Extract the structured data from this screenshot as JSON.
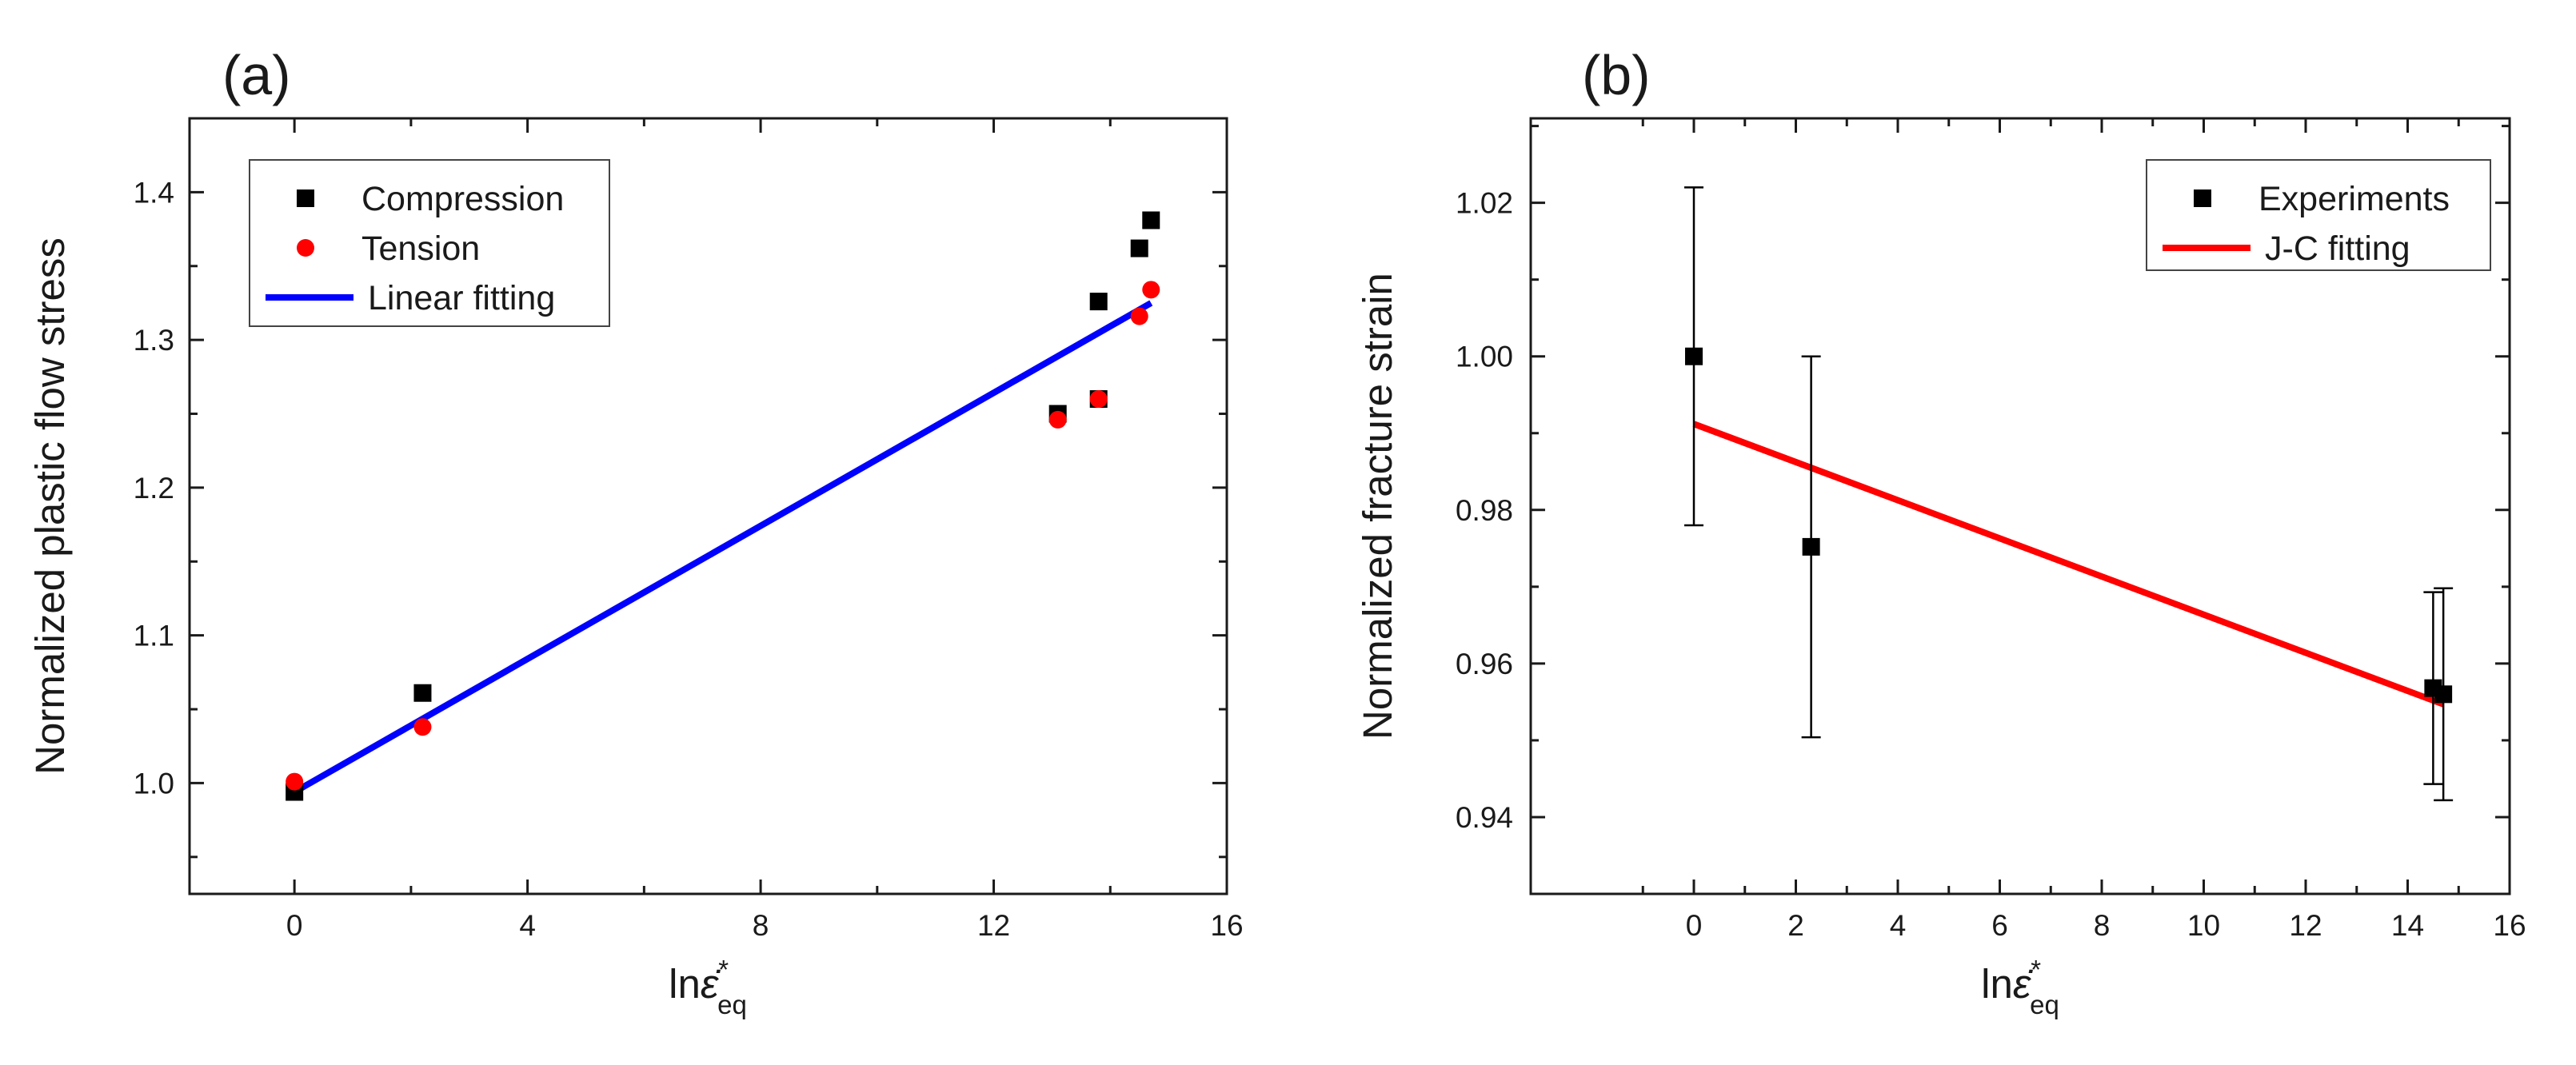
{
  "colors": {
    "compression": "#000000",
    "tension": "#ff0000",
    "linear_fit": "#0000ff",
    "experiments": "#000000",
    "jc_fit": "#ff0000",
    "axis": "#1a1a1a"
  },
  "chart_data": [
    {
      "panel_label": "(a)",
      "type": "scatter",
      "title": "",
      "xlabel": {
        "base": "ln",
        "symbol": "ε̇",
        "superscript": "*",
        "subscript": "eq"
      },
      "ylabel": "Normalized plastic flow stress",
      "xlim": [
        -1.8,
        16
      ],
      "ylim": [
        0.925,
        1.45
      ],
      "xticks": [
        0,
        4,
        8,
        12,
        16
      ],
      "xtick_labels": [
        "0",
        "4",
        "8",
        "12",
        "16"
      ],
      "yticks": [
        1.0,
        1.1,
        1.2,
        1.3,
        1.4
      ],
      "ytick_labels": [
        "1.0",
        "1.1",
        "1.2",
        "1.3",
        "1.4"
      ],
      "grid": false,
      "legend_position": "top-left",
      "series": [
        {
          "name": "Compression",
          "kind": "scatter",
          "marker": "square",
          "color": "#000000",
          "x": [
            0,
            2.2,
            13.1,
            13.8,
            13.8,
            14.5,
            14.7
          ],
          "y": [
            0.994,
            1.061,
            1.25,
            1.326,
            1.26,
            1.362,
            1.381
          ]
        },
        {
          "name": "Tension",
          "kind": "scatter",
          "marker": "circle",
          "color": "#ff0000",
          "x": [
            0,
            2.2,
            13.1,
            13.8,
            14.5,
            14.7
          ],
          "y": [
            1.001,
            1.038,
            1.246,
            1.26,
            1.316,
            1.334
          ]
        },
        {
          "name": "Linear fitting",
          "kind": "line",
          "color": "#0000ff",
          "x": [
            0,
            14.7
          ],
          "y": [
            0.994,
            1.325
          ]
        }
      ]
    },
    {
      "panel_label": "(b)",
      "type": "scatter",
      "title": "",
      "xlabel": {
        "base": "ln",
        "symbol": "ε̇",
        "superscript": "*",
        "subscript": "eq"
      },
      "ylabel": "Normalized fracture strain",
      "xlim": [
        -3.2,
        16
      ],
      "ylim": [
        0.93,
        1.031
      ],
      "xticks": [
        0,
        2,
        4,
        6,
        8,
        10,
        12,
        14,
        16
      ],
      "xtick_labels": [
        "0",
        "2",
        "4",
        "6",
        "8",
        "10",
        "12",
        "14",
        "16"
      ],
      "yticks": [
        0.94,
        0.96,
        0.98,
        1.0,
        1.02
      ],
      "ytick_labels": [
        "0.94",
        "0.96",
        "0.98",
        "1.00",
        "1.02"
      ],
      "grid": false,
      "legend_position": "top-right",
      "series": [
        {
          "name": "Experiments",
          "kind": "scatter",
          "marker": "square",
          "color": "#000000",
          "x": [
            0,
            2.3,
            14.5,
            14.7
          ],
          "y": [
            1.0,
            0.9752,
            0.9568,
            0.956
          ],
          "error": [
            0.022,
            0.0248,
            0.0125,
            0.0138
          ]
        },
        {
          "name": "J-C fitting",
          "kind": "line",
          "color": "#ff0000",
          "x": [
            0,
            14.7
          ],
          "y": [
            0.9912,
            0.9547
          ]
        }
      ]
    }
  ]
}
